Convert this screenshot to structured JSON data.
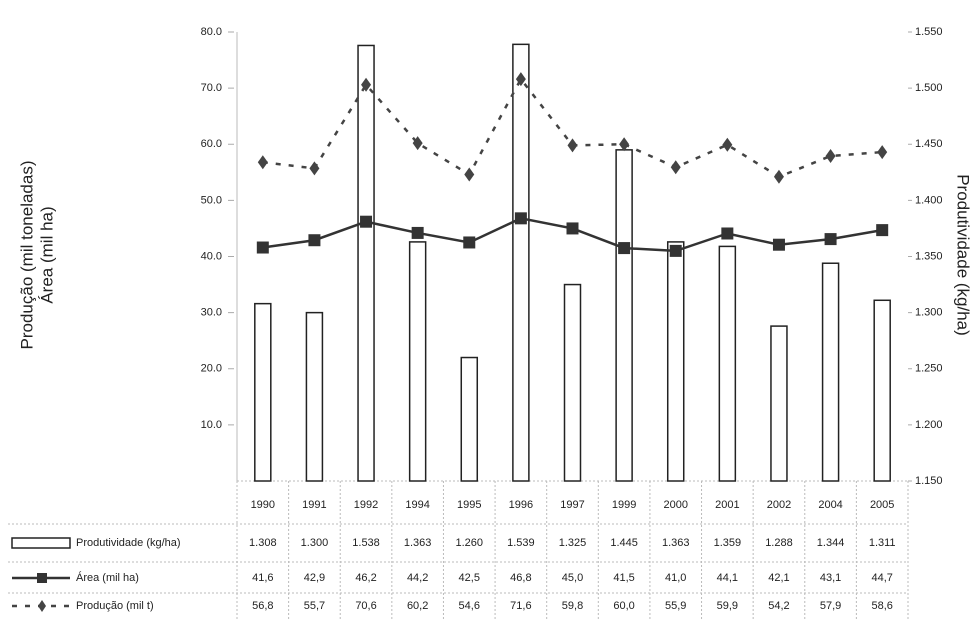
{
  "chart_data": {
    "type": "bar",
    "ylabel": "Produção (mil toneladas)",
    "ylabel2": "Área (mil ha)",
    "y2label": "Produtividade (kg/ha)",
    "categories": [
      "1990",
      "1991",
      "1992",
      "1994",
      "1995",
      "1996",
      "1997",
      "1999",
      "2000",
      "2001",
      "2002",
      "2004",
      "2005"
    ],
    "series": [
      {
        "name": "Produtividade (kg/ha)",
        "type": "bar",
        "axis": "y2",
        "color": "#ffffff",
        "values": [
          1308,
          1300,
          1538,
          1363,
          1260,
          1539,
          1325,
          1445,
          1363,
          1359,
          1288,
          1344,
          1311
        ],
        "value_labels": [
          "1.308",
          "1.300",
          "1.538",
          "1.363",
          "1.260",
          "1.539",
          "1.325",
          "1.445",
          "1.363",
          "1.359",
          "1.288",
          "1.344",
          "1.311"
        ]
      },
      {
        "name": "Área (mil ha)",
        "type": "line",
        "color": "#333333",
        "values": [
          41.6,
          42.9,
          46.2,
          44.2,
          42.5,
          46.8,
          45.0,
          41.5,
          41.0,
          44.1,
          42.1,
          43.1,
          44.7
        ],
        "value_labels": [
          "41,6",
          "42,9",
          "46,2",
          "44,2",
          "42,5",
          "46,8",
          "45,0",
          "41,5",
          "41,0",
          "44,1",
          "42,1",
          "43,1",
          "44,7"
        ]
      },
      {
        "name": "Produção (mil t)",
        "type": "dashed",
        "color": "#444444",
        "values": [
          56.8,
          55.7,
          70.6,
          60.2,
          54.6,
          71.6,
          59.8,
          60.0,
          55.9,
          59.9,
          54.2,
          57.9,
          58.6
        ],
        "value_labels": [
          "56,8",
          "55,7",
          "70,6",
          "60,2",
          "54,6",
          "71,6",
          "59,8",
          "60,0",
          "55,9",
          "59,9",
          "54,2",
          "57,9",
          "58,6"
        ]
      }
    ],
    "ylim": [
      0,
      80
    ],
    "yticks": [
      {
        "value": 10,
        "label": "10.0"
      },
      {
        "value": 20,
        "label": "20.0"
      },
      {
        "value": 30,
        "label": "30.0"
      },
      {
        "value": 40,
        "label": "40.0"
      },
      {
        "value": 50,
        "label": "50.0"
      },
      {
        "value": 60,
        "label": "60.0"
      },
      {
        "value": 70,
        "label": "70.0"
      },
      {
        "value": 80,
        "label": "80.0"
      }
    ],
    "y2lim": [
      1150,
      1550
    ],
    "y2ticks": [
      {
        "value": 1150,
        "label": "1.150"
      },
      {
        "value": 1200,
        "label": "1.200"
      },
      {
        "value": 1250,
        "label": "1.250"
      },
      {
        "value": 1300,
        "label": "1.300"
      },
      {
        "value": 1350,
        "label": "1.350"
      },
      {
        "value": 1400,
        "label": "1.400"
      },
      {
        "value": 1450,
        "label": "1.450"
      },
      {
        "value": 1500,
        "label": "1.500"
      },
      {
        "value": 1550,
        "label": "1.550"
      }
    ]
  }
}
